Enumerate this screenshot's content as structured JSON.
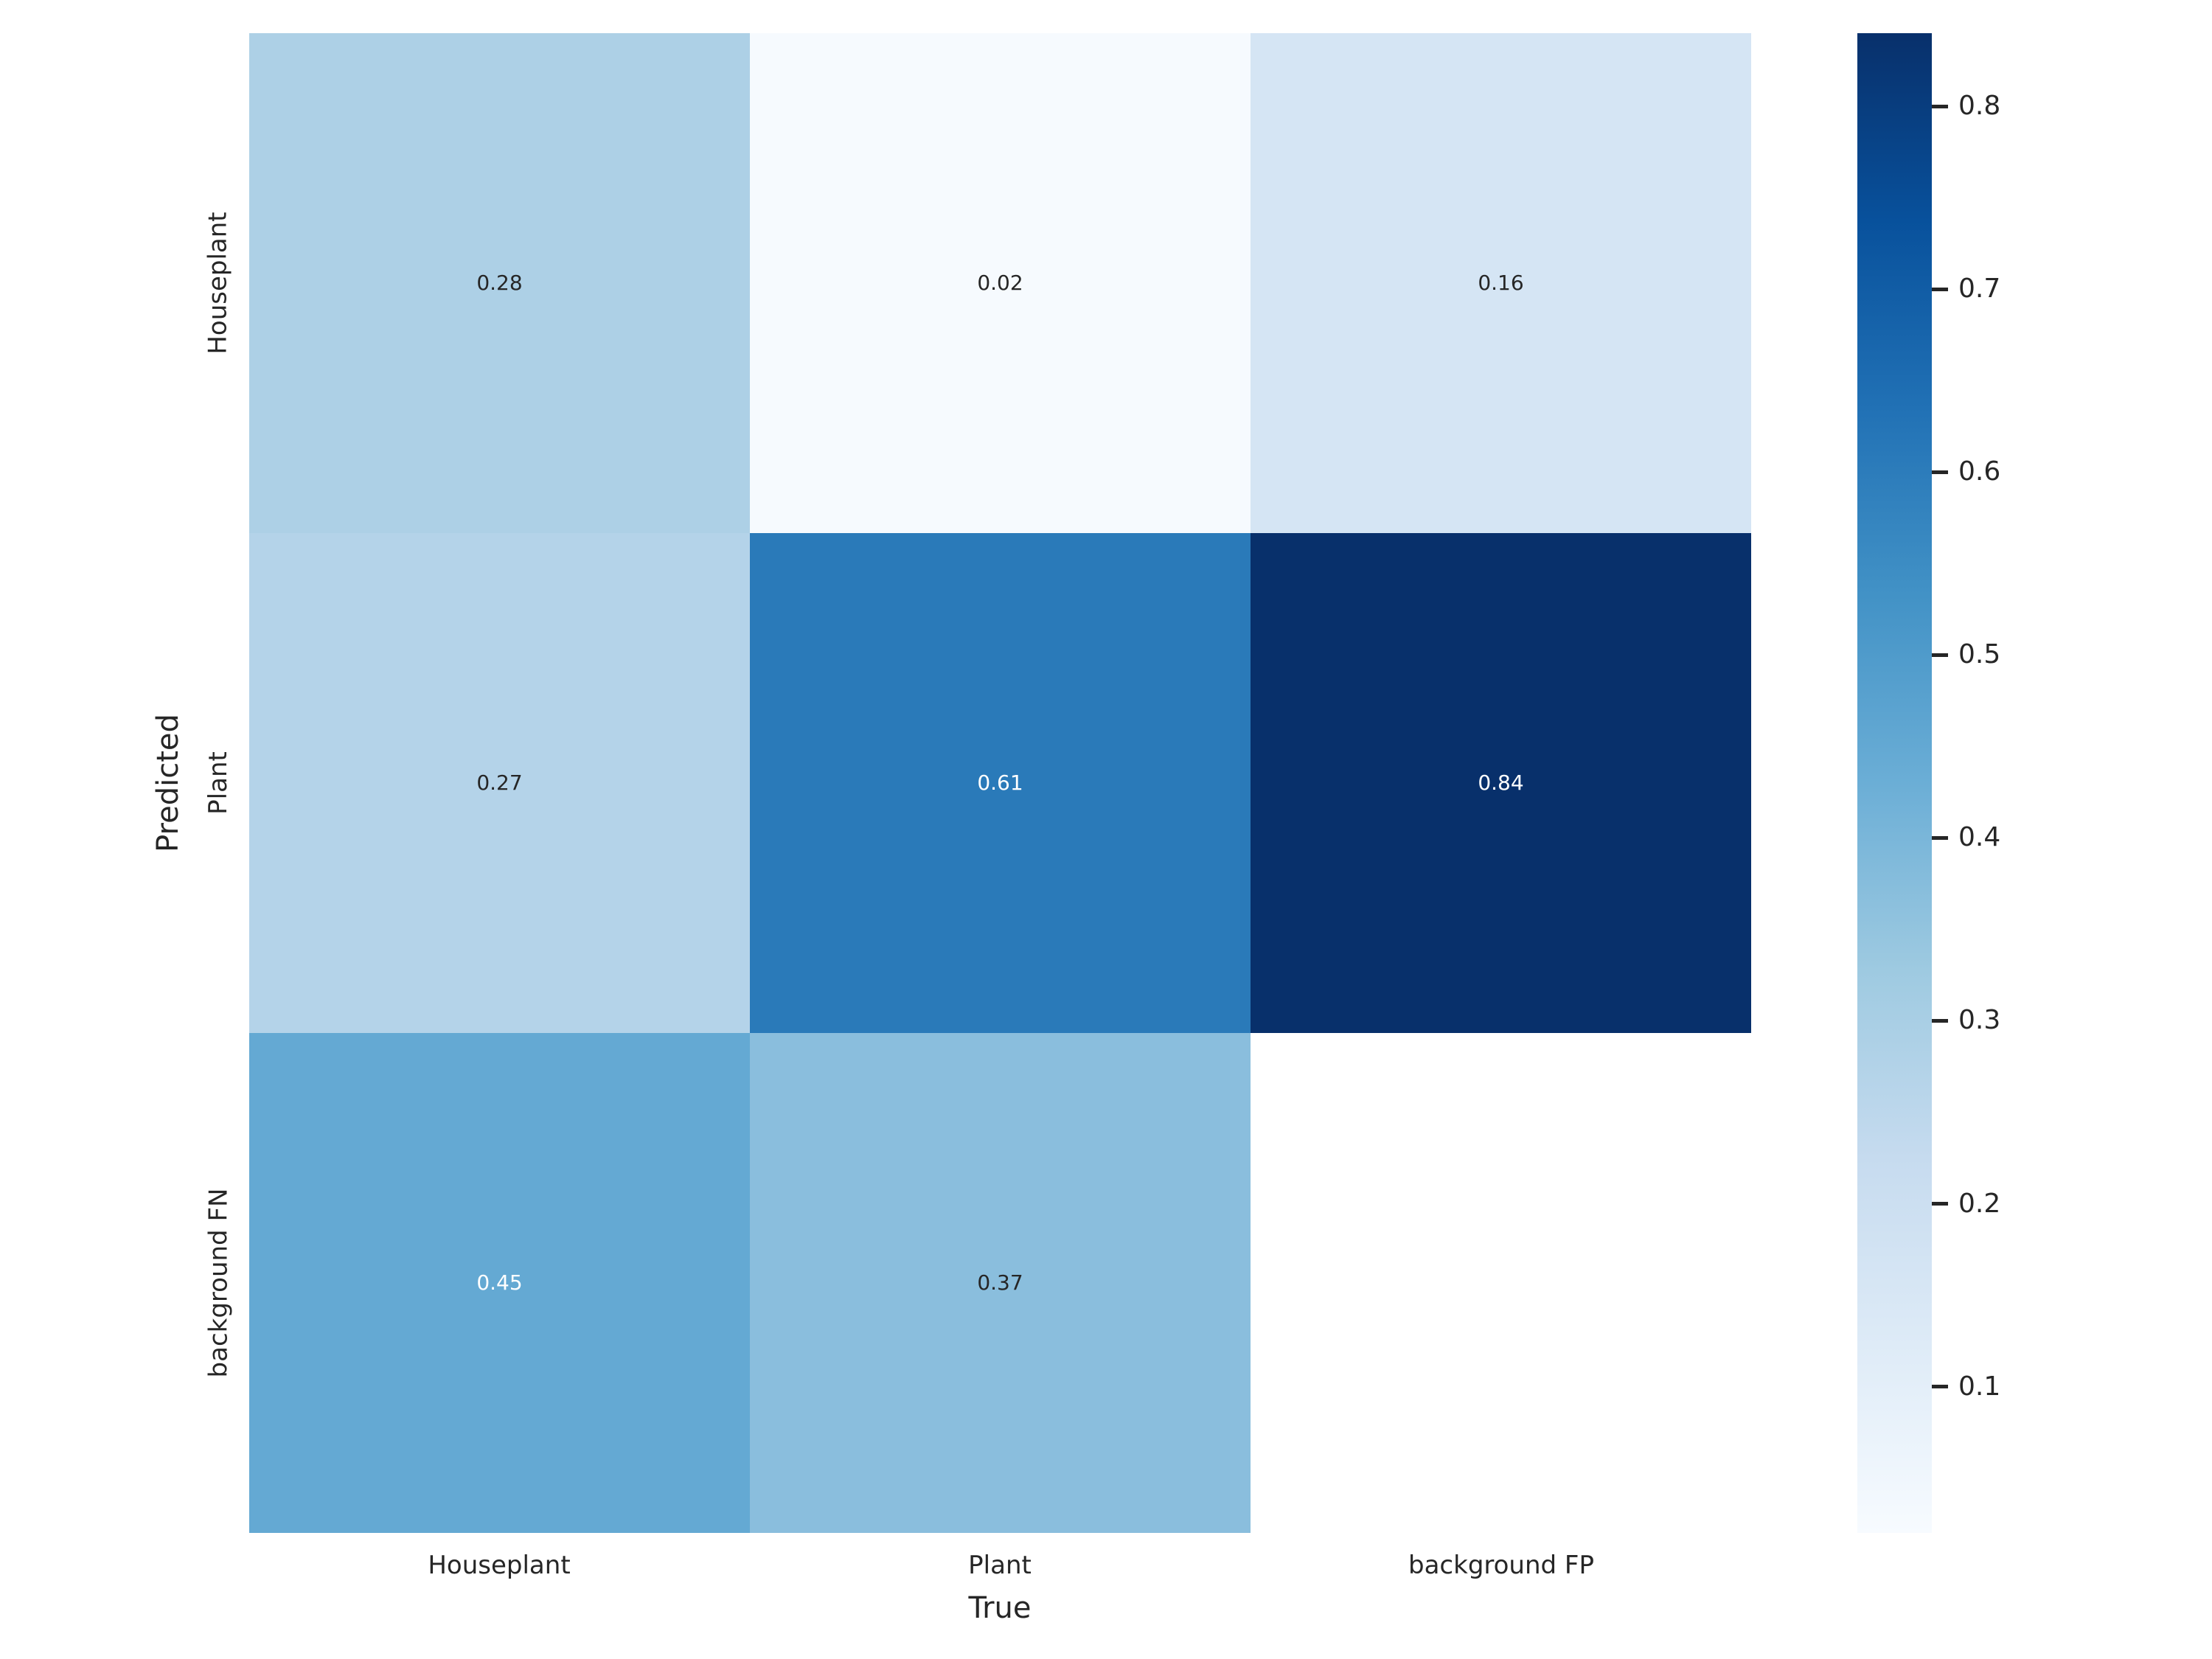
{
  "chart_data": {
    "type": "heatmap",
    "title": "",
    "xlabel": "True",
    "ylabel": "Predicted",
    "x_categories": [
      "Houseplant",
      "Plant",
      "background FP"
    ],
    "y_categories": [
      "Houseplant",
      "Plant",
      "background FN"
    ],
    "matrix": [
      [
        0.28,
        0.02,
        0.16
      ],
      [
        0.27,
        0.61,
        0.84
      ],
      [
        0.45,
        0.37,
        null
      ]
    ],
    "matrix_labels": [
      [
        "0.28",
        "0.02",
        "0.16"
      ],
      [
        "0.27",
        "0.61",
        "0.84"
      ],
      [
        "0.45",
        "0.37",
        ""
      ]
    ],
    "cell_colors": [
      [
        "#add0e6",
        "#f6fafe",
        "#d5e5f4"
      ],
      [
        "#b4d3e9",
        "#2a7ab9",
        "#08306b"
      ],
      [
        "#64a9d3",
        "#8abedd",
        "#ffffff"
      ]
    ],
    "cell_text_colors": [
      [
        "#262626",
        "#262626",
        "#262626"
      ],
      [
        "#262626",
        "#ffffff",
        "#ffffff"
      ],
      [
        "#ffffff",
        "#262626",
        ""
      ]
    ],
    "masked_cells": [
      {
        "row": 2,
        "col": 2
      }
    ],
    "colormap": "Blues",
    "color_scale": {
      "vmin": 0.02,
      "vmax": 0.84,
      "gradient_stops": [
        "#f7fbff",
        "#deebf7",
        "#c6dbef",
        "#9ecae1",
        "#6baed6",
        "#4292c6",
        "#2171b5",
        "#08519c",
        "#08306b"
      ]
    },
    "colorbar_ticks": [
      {
        "value": 0.8,
        "label": "0.8"
      },
      {
        "value": 0.7,
        "label": "0.7"
      },
      {
        "value": 0.6,
        "label": "0.6"
      },
      {
        "value": 0.5,
        "label": "0.5"
      },
      {
        "value": 0.4,
        "label": "0.4"
      },
      {
        "value": 0.3,
        "label": "0.3"
      },
      {
        "value": 0.2,
        "label": "0.2"
      },
      {
        "value": 0.1,
        "label": "0.1"
      }
    ],
    "legend_position": "right-colorbar",
    "grid": false,
    "text_color": "#262626",
    "background_color": "#ffffff"
  }
}
